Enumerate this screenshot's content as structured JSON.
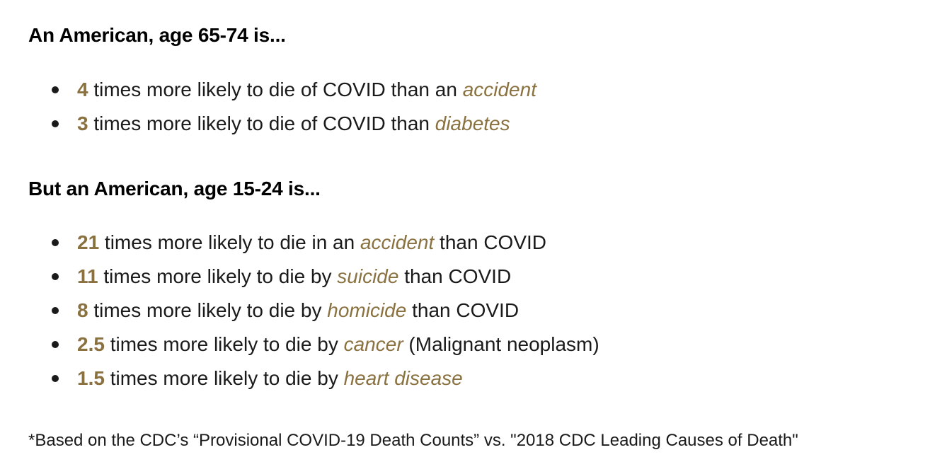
{
  "section1": {
    "heading": "An American, age 65-74 is...",
    "items": [
      {
        "number": "4",
        "pre": " times more likely to die of COVID than an ",
        "cause": "accident",
        "post": ""
      },
      {
        "number": "3",
        "pre": " times more likely to die of COVID than ",
        "cause": "diabetes",
        "post": ""
      }
    ]
  },
  "section2": {
    "heading": "But an American, age 15-24 is...",
    "items": [
      {
        "number": "21",
        "pre": " times more likely to die in an ",
        "cause": "accident",
        "post": " than COVID"
      },
      {
        "number": "11",
        "pre": " times more likely to die by ",
        "cause": "suicide",
        "post": " than COVID"
      },
      {
        "number": "8",
        "pre": " times more likely to die by ",
        "cause": "homicide",
        "post": " than COVID"
      },
      {
        "number": "2.5",
        "pre": " times more likely to die by ",
        "cause": "cancer",
        "post": " (Malignant neoplasm)"
      },
      {
        "number": "1.5",
        "pre": " times more likely to die by ",
        "cause": "heart disease",
        "post": ""
      }
    ]
  },
  "footnote": "*Based on the CDC’s “Provisional COVID-19 Death Counts” vs. \"2018 CDC Leading Causes of Death\"",
  "colors": {
    "accent": "#8a7140",
    "text": "#1a1a1a",
    "heading": "#000000"
  }
}
